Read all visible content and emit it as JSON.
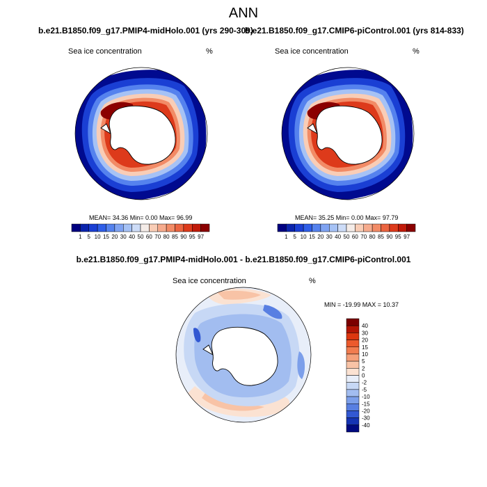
{
  "figure": {
    "title": "ANN",
    "diff_title": "b.e21.B1850.f09_g17.PMIP4-midHolo.001 - b.e21.B1850.f09_g17.CMIP6-piControl.001"
  },
  "panels": [
    {
      "title": "b.e21.B1850.f09_g17.PMIP4-midHolo.001 (yrs 290-309)",
      "variable": "Sea ice concentration",
      "units": "%",
      "stats_text": "MEAN=  34.36  Min=   0.00  Max=  96.99"
    },
    {
      "title": "b.e21.B1850.f09_g17.CMIP6-piControl.001 (yrs 814-833)",
      "variable": "Sea ice concentration",
      "units": "%",
      "stats_text": "MEAN=  35.25  Min=   0.00  Max=  97.79"
    },
    {
      "title": "",
      "variable": "Sea ice concentration",
      "units": "%",
      "stats_text": "MIN = -19.99 MAX =  10.37"
    }
  ],
  "chart_data": [
    {
      "type": "heatmap",
      "title": "b.e21.B1850.f09_g17.PMIP4-midHolo.001 (yrs 290-309)",
      "variable": "Sea ice concentration",
      "units": "%",
      "projection": "south polar stereographic",
      "stats": {
        "mean": 34.36,
        "min": 0.0,
        "max": 96.99
      },
      "colorbar": {
        "orientation": "horizontal",
        "levels": [
          1,
          5,
          10,
          15,
          20,
          30,
          40,
          50,
          60,
          70,
          80,
          85,
          90,
          95,
          97
        ],
        "colors": [
          "#000080",
          "#0b24ad",
          "#1a3fd4",
          "#2f5ee8",
          "#5582ee",
          "#7fa3f2",
          "#a6c2f5",
          "#cddcf7",
          "#f4ece8",
          "#f9cdb6",
          "#f6ab8d",
          "#f28b66",
          "#eb6440",
          "#dd3a1b",
          "#c11a09",
          "#8b0000"
        ]
      }
    },
    {
      "type": "heatmap",
      "title": "b.e21.B1850.f09_g17.CMIP6-piControl.001 (yrs 814-833)",
      "variable": "Sea ice concentration",
      "units": "%",
      "projection": "south polar stereographic",
      "stats": {
        "mean": 35.25,
        "min": 0.0,
        "max": 97.79
      },
      "colorbar": {
        "orientation": "horizontal",
        "levels": [
          1,
          5,
          10,
          15,
          20,
          30,
          40,
          50,
          60,
          70,
          80,
          85,
          90,
          95,
          97
        ],
        "colors": [
          "#000080",
          "#0b24ad",
          "#1a3fd4",
          "#2f5ee8",
          "#5582ee",
          "#7fa3f2",
          "#a6c2f5",
          "#cddcf7",
          "#f4ece8",
          "#f9cdb6",
          "#f6ab8d",
          "#f28b66",
          "#eb6440",
          "#dd3a1b",
          "#c11a09",
          "#8b0000"
        ]
      }
    },
    {
      "type": "heatmap",
      "title": "b.e21.B1850.f09_g17.PMIP4-midHolo.001 - b.e21.B1850.f09_g17.CMIP6-piControl.001",
      "variable": "Sea ice concentration",
      "units": "%",
      "projection": "south polar stereographic",
      "stats": {
        "min": -19.99,
        "max": 10.37
      },
      "colorbar": {
        "orientation": "vertical",
        "levels": [
          40,
          30,
          20,
          15,
          10,
          5,
          2,
          0,
          -2,
          -5,
          -10,
          -15,
          -20,
          -30,
          -40
        ],
        "colors": [
          "#7b0000",
          "#b31505",
          "#dd3710",
          "#ec5a2d",
          "#f17c4f",
          "#f5a07a",
          "#f8c3a6",
          "#fbe2d2",
          "#e8eef9",
          "#c7d8f5",
          "#a2bdf0",
          "#7c9fea",
          "#587fe2",
          "#3258d2",
          "#1534b3",
          "#000a80"
        ]
      }
    }
  ]
}
